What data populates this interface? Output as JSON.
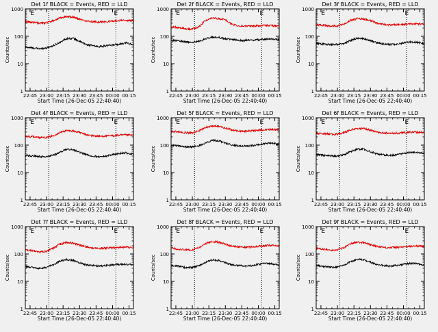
{
  "figure": {
    "background": "#f0f0f0",
    "axis_color": "#000000",
    "events_color": "#000000",
    "lld_color": "#e00000"
  },
  "chart_data": [
    {
      "type": "line",
      "title": "Det 1f BLACK = Events, RED = LLD",
      "xlabel": "Start Time (26-Dec-05 22:40:40)",
      "ylabel": "Counts/sec",
      "yscale": "log",
      "ylim": [
        1,
        1000
      ],
      "yticks": [
        "1",
        "10",
        "100",
        "1000"
      ],
      "xlim": [
        "22:40:40",
        "00:19:00"
      ],
      "xticks": [
        "22:45",
        "23:00",
        "23:15",
        "23:30",
        "23:45",
        "00:00",
        "00:15"
      ],
      "markers": [
        {
          "label": "E",
          "time": "22:47"
        },
        {
          "label": "E",
          "time": "00:03"
        }
      ],
      "dotted_lines": [
        "23:02",
        "00:03"
      ],
      "grid": false,
      "x": [
        "22:42",
        "22:48",
        "22:54",
        "23:00",
        "23:06",
        "23:12",
        "23:18",
        "23:24",
        "23:30",
        "23:36",
        "23:42",
        "23:48",
        "23:54",
        "00:00",
        "00:06",
        "00:12",
        "00:18"
      ],
      "series": [
        {
          "name": "Events",
          "color": "#000000",
          "values": [
            40,
            37,
            35,
            38,
            45,
            60,
            82,
            85,
            65,
            50,
            45,
            42,
            45,
            48,
            52,
            58,
            50
          ]
        },
        {
          "name": "LLD",
          "color": "#e00000",
          "values": [
            340,
            320,
            300,
            310,
            370,
            460,
            520,
            510,
            420,
            360,
            340,
            330,
            340,
            360,
            380,
            390,
            370
          ]
        }
      ]
    },
    {
      "type": "line",
      "title": "Det 2f BLACK = Events, RED = LLD",
      "xlabel": "Start Time (26-Dec-05 22:40:40)",
      "ylabel": "Counts/sec",
      "yscale": "log",
      "ylim": [
        1,
        1000
      ],
      "yticks": [
        "1",
        "10",
        "100",
        "1000"
      ],
      "xlim": [
        "22:40:40",
        "00:19:00"
      ],
      "xticks": [
        "22:45",
        "23:00",
        "23:15",
        "23:30",
        "23:45",
        "00:00",
        "00:15"
      ],
      "markers": [
        {
          "label": "E",
          "time": "22:47"
        },
        {
          "label": "E",
          "time": "00:03"
        }
      ],
      "dotted_lines": [
        "23:02",
        "00:03"
      ],
      "grid": false,
      "x": [
        "22:42",
        "22:48",
        "22:54",
        "23:00",
        "23:06",
        "23:12",
        "23:18",
        "23:24",
        "23:30",
        "23:36",
        "23:42",
        "23:48",
        "23:54",
        "00:00",
        "00:06",
        "00:12",
        "00:18"
      ],
      "series": [
        {
          "name": "Events",
          "color": "#000000",
          "values": [
            70,
            68,
            62,
            60,
            65,
            80,
            95,
            92,
            80,
            75,
            72,
            70,
            72,
            75,
            78,
            80,
            75
          ]
        },
        {
          "name": "LLD",
          "color": "#e00000",
          "values": [
            220,
            210,
            190,
            185,
            220,
            380,
            470,
            440,
            400,
            270,
            240,
            230,
            235,
            240,
            250,
            245,
            240
          ]
        }
      ]
    },
    {
      "type": "line",
      "title": "Det 3f BLACK = Events, RED = LLD",
      "xlabel": "Start Time (26-Dec-05 22:40:40)",
      "ylabel": "Counts/sec",
      "yscale": "log",
      "ylim": [
        1,
        1000
      ],
      "yticks": [
        "1",
        "10",
        "100",
        "1000"
      ],
      "xlim": [
        "22:40:40",
        "00:19:00"
      ],
      "xticks": [
        "22:45",
        "23:00",
        "23:15",
        "23:30",
        "23:45",
        "00:00",
        "00:15"
      ],
      "markers": [
        {
          "label": "E",
          "time": "22:47"
        },
        {
          "label": "E",
          "time": "00:03"
        }
      ],
      "dotted_lines": [
        "23:02",
        "00:03"
      ],
      "grid": false,
      "x": [
        "22:42",
        "22:48",
        "22:54",
        "23:00",
        "23:06",
        "23:12",
        "23:18",
        "23:24",
        "23:30",
        "23:36",
        "23:42",
        "23:48",
        "23:54",
        "00:00",
        "00:06",
        "00:12",
        "00:18"
      ],
      "series": [
        {
          "name": "Events",
          "color": "#000000",
          "values": [
            55,
            52,
            50,
            50,
            55,
            70,
            85,
            82,
            70,
            58,
            52,
            50,
            52,
            58,
            62,
            60,
            55
          ]
        },
        {
          "name": "LLD",
          "color": "#e00000",
          "values": [
            260,
            250,
            240,
            240,
            280,
            380,
            440,
            430,
            370,
            300,
            270,
            260,
            265,
            270,
            280,
            285,
            280
          ]
        }
      ]
    },
    {
      "type": "line",
      "title": "Det 4f BLACK = Events, RED = LLD",
      "xlabel": "Start Time (26-Dec-05 22:40:40)",
      "ylabel": "Counts/sec",
      "yscale": "log",
      "ylim": [
        1,
        1000
      ],
      "yticks": [
        "1",
        "10",
        "100",
        "1000"
      ],
      "xlim": [
        "22:40:40",
        "00:19:00"
      ],
      "xticks": [
        "22:45",
        "23:00",
        "23:15",
        "23:30",
        "23:45",
        "00:00",
        "00:15"
      ],
      "markers": [
        {
          "label": "E",
          "time": "22:47"
        },
        {
          "label": "E",
          "time": "00:03"
        }
      ],
      "dotted_lines": [
        "23:02",
        "00:03"
      ],
      "grid": false,
      "x": [
        "22:42",
        "22:48",
        "22:54",
        "23:00",
        "23:06",
        "23:12",
        "23:18",
        "23:24",
        "23:30",
        "23:36",
        "23:42",
        "23:48",
        "23:54",
        "00:00",
        "00:06",
        "00:12",
        "00:18"
      ],
      "series": [
        {
          "name": "Events",
          "color": "#000000",
          "values": [
            42,
            40,
            38,
            38,
            42,
            55,
            70,
            68,
            55,
            45,
            40,
            38,
            40,
            45,
            50,
            52,
            48
          ]
        },
        {
          "name": "LLD",
          "color": "#e00000",
          "values": [
            210,
            200,
            190,
            190,
            220,
            290,
            340,
            330,
            290,
            240,
            220,
            210,
            215,
            220,
            230,
            235,
            230
          ]
        }
      ]
    },
    {
      "type": "line",
      "title": "Det 5f BLACK = Events, RED = LLD",
      "xlabel": "Start Time (26-Dec-05 22:40:40)",
      "ylabel": "Counts/sec",
      "yscale": "log",
      "ylim": [
        1,
        1000
      ],
      "yticks": [
        "1",
        "10",
        "100",
        "1000"
      ],
      "xlim": [
        "22:40:40",
        "00:19:00"
      ],
      "xticks": [
        "22:45",
        "23:00",
        "23:15",
        "23:30",
        "23:45",
        "00:00",
        "00:15"
      ],
      "markers": [
        {
          "label": "E",
          "time": "22:47"
        },
        {
          "label": "E",
          "time": "00:03"
        }
      ],
      "dotted_lines": [
        "23:02",
        "00:03"
      ],
      "grid": false,
      "x": [
        "22:42",
        "22:48",
        "22:54",
        "23:00",
        "23:06",
        "23:12",
        "23:18",
        "23:24",
        "23:30",
        "23:36",
        "23:42",
        "23:48",
        "23:54",
        "00:00",
        "00:06",
        "00:12",
        "00:18"
      ],
      "series": [
        {
          "name": "Events",
          "color": "#000000",
          "values": [
            100,
            95,
            88,
            85,
            95,
            120,
            150,
            145,
            120,
            100,
            95,
            92,
            95,
            105,
            115,
            118,
            110
          ]
        },
        {
          "name": "LLD",
          "color": "#e00000",
          "values": [
            320,
            300,
            280,
            280,
            330,
            440,
            500,
            480,
            420,
            360,
            330,
            320,
            330,
            350,
            370,
            375,
            360
          ]
        }
      ]
    },
    {
      "type": "line",
      "title": "Det 6f BLACK = Events, RED = LLD",
      "xlabel": "Start Time (26-Dec-05 22:40:40)",
      "ylabel": "Counts/sec",
      "yscale": "log",
      "ylim": [
        1,
        1000
      ],
      "yticks": [
        "1",
        "10",
        "100",
        "1000"
      ],
      "xlim": [
        "22:40:40",
        "00:19:00"
      ],
      "xticks": [
        "22:45",
        "23:00",
        "23:15",
        "23:30",
        "23:45",
        "00:00",
        "00:15"
      ],
      "markers": [
        {
          "label": "E",
          "time": "22:47"
        },
        {
          "label": "E",
          "time": "00:03"
        }
      ],
      "dotted_lines": [
        "23:02",
        "00:03"
      ],
      "grid": false,
      "x": [
        "22:42",
        "22:48",
        "22:54",
        "23:00",
        "23:06",
        "23:12",
        "23:18",
        "23:24",
        "23:30",
        "23:36",
        "23:42",
        "23:48",
        "23:54",
        "00:00",
        "00:06",
        "00:12",
        "00:18"
      ],
      "series": [
        {
          "name": "Events",
          "color": "#000000",
          "values": [
            45,
            42,
            40,
            40,
            45,
            58,
            72,
            70,
            58,
            48,
            44,
            42,
            44,
            50,
            55,
            55,
            50
          ]
        },
        {
          "name": "LLD",
          "color": "#e00000",
          "values": [
            270,
            260,
            250,
            250,
            280,
            360,
            410,
            400,
            350,
            300,
            280,
            270,
            275,
            285,
            295,
            295,
            290
          ]
        }
      ]
    },
    {
      "type": "line",
      "title": "Det 7f BLACK = Events, RED = LLD",
      "xlabel": "Start Time (26-Dec-05 22:40:40)",
      "ylabel": "Counts/sec",
      "yscale": "log",
      "ylim": [
        1,
        1000
      ],
      "yticks": [
        "1",
        "10",
        "100",
        "1000"
      ],
      "xlim": [
        "22:40:40",
        "00:19:00"
      ],
      "xticks": [
        "22:45",
        "23:00",
        "23:15",
        "23:30",
        "23:45",
        "00:00",
        "00:15"
      ],
      "markers": [
        {
          "label": "E",
          "time": "22:47"
        },
        {
          "label": "E",
          "time": "00:03"
        }
      ],
      "dotted_lines": [
        "23:02",
        "00:03"
      ],
      "grid": false,
      "x": [
        "22:42",
        "22:48",
        "22:54",
        "23:00",
        "23:06",
        "23:12",
        "23:18",
        "23:24",
        "23:30",
        "23:36",
        "23:42",
        "23:48",
        "23:54",
        "00:00",
        "00:06",
        "00:12",
        "00:18"
      ],
      "series": [
        {
          "name": "Events",
          "color": "#000000",
          "values": [
            35,
            32,
            30,
            32,
            40,
            55,
            62,
            58,
            48,
            40,
            38,
            36,
            38,
            40,
            42,
            42,
            40
          ]
        },
        {
          "name": "LLD",
          "color": "#e00000",
          "values": [
            140,
            130,
            120,
            125,
            160,
            230,
            260,
            250,
            210,
            180,
            165,
            160,
            165,
            170,
            175,
            178,
            175
          ]
        }
      ]
    },
    {
      "type": "line",
      "title": "Det 8f BLACK = Events, RED = LLD",
      "xlabel": "Start Time (26-Dec-05 22:40:40)",
      "ylabel": "Counts/sec",
      "yscale": "log",
      "ylim": [
        1,
        1000
      ],
      "yticks": [
        "1",
        "10",
        "100",
        "1000"
      ],
      "xlim": [
        "22:40:40",
        "00:19:00"
      ],
      "xticks": [
        "22:45",
        "23:00",
        "23:15",
        "23:30",
        "23:45",
        "00:00",
        "00:15"
      ],
      "markers": [
        {
          "label": "E",
          "time": "22:47"
        },
        {
          "label": "E",
          "time": "00:03"
        }
      ],
      "dotted_lines": [
        "23:02",
        "00:03"
      ],
      "grid": false,
      "x": [
        "22:42",
        "22:48",
        "22:54",
        "23:00",
        "23:06",
        "23:12",
        "23:18",
        "23:24",
        "23:30",
        "23:36",
        "23:42",
        "23:48",
        "23:54",
        "00:00",
        "00:06",
        "00:12",
        "00:18"
      ],
      "series": [
        {
          "name": "Events",
          "color": "#000000",
          "values": [
            38,
            35,
            32,
            32,
            38,
            50,
            60,
            58,
            48,
            40,
            37,
            36,
            38,
            42,
            45,
            44,
            40
          ]
        },
        {
          "name": "LLD",
          "color": "#e00000",
          "values": [
            160,
            150,
            140,
            140,
            170,
            240,
            280,
            270,
            230,
            195,
            180,
            175,
            180,
            190,
            200,
            205,
            200
          ]
        }
      ]
    },
    {
      "type": "line",
      "title": "Det 9f BLACK = Events, RED = LLD",
      "xlabel": "Start Time (26-Dec-05 22:40:40)",
      "ylabel": "Counts/sec",
      "yscale": "log",
      "ylim": [
        1,
        1000
      ],
      "yticks": [
        "1",
        "10",
        "100",
        "1000"
      ],
      "xlim": [
        "22:40:40",
        "00:19:00"
      ],
      "xticks": [
        "22:45",
        "23:00",
        "23:15",
        "23:30",
        "23:45",
        "00:00",
        "00:15"
      ],
      "markers": [
        {
          "label": "E",
          "time": "22:47"
        },
        {
          "label": "E",
          "time": "00:03"
        }
      ],
      "dotted_lines": [
        "23:02",
        "00:03"
      ],
      "grid": false,
      "x": [
        "22:42",
        "22:48",
        "22:54",
        "23:00",
        "23:06",
        "23:12",
        "23:18",
        "23:24",
        "23:30",
        "23:36",
        "23:42",
        "23:48",
        "23:54",
        "00:00",
        "00:06",
        "00:12",
        "00:18"
      ],
      "series": [
        {
          "name": "Events",
          "color": "#000000",
          "values": [
            38,
            35,
            33,
            33,
            40,
            52,
            65,
            62,
            50,
            42,
            38,
            36,
            38,
            42,
            45,
            45,
            40
          ]
        },
        {
          "name": "LLD",
          "color": "#e00000",
          "values": [
            160,
            150,
            140,
            140,
            170,
            240,
            270,
            260,
            220,
            190,
            175,
            170,
            175,
            180,
            190,
            195,
            190
          ]
        }
      ]
    }
  ]
}
